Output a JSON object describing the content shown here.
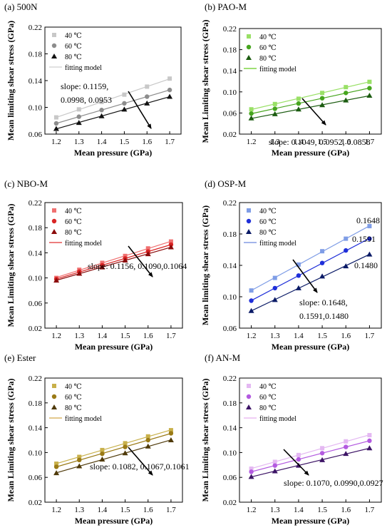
{
  "chart_data": [
    {
      "type": "scatter",
      "panel": "(a) 500N",
      "xlabel": "Mean pressure (GPa)",
      "ylabel": "Mean limiting shear stress (GPa)",
      "xlim": [
        1.15,
        1.75
      ],
      "ylim": [
        0.06,
        0.22
      ],
      "xticks": [
        "1.2",
        "1.3",
        "1.4",
        "1.5",
        "1.6",
        "1.7"
      ],
      "yticks": [
        "0.06",
        "0.10",
        "0.14",
        "0.18",
        "0.22"
      ],
      "x": [
        1.2,
        1.3,
        1.4,
        1.5,
        1.6,
        1.7
      ],
      "series": [
        {
          "name": "40 ℃",
          "marker": "square",
          "color": "#c8c8c8",
          "values": [
            0.085,
            0.097,
            0.108,
            0.119,
            0.131,
            0.143
          ]
        },
        {
          "name": "60 ℃",
          "marker": "circle",
          "color": "#8c8c8c",
          "values": [
            0.076,
            0.086,
            0.096,
            0.106,
            0.116,
            0.126
          ]
        },
        {
          "name": "80 ℃",
          "marker": "triangle",
          "color": "#111111",
          "values": [
            0.068,
            0.077,
            0.087,
            0.097,
            0.106,
            0.116
          ]
        }
      ],
      "fit_label": "fitting model",
      "fit_color": "#cfcfcf",
      "annotation": [
        "slope: 0.1159,",
        "0.0998, 0.0953"
      ],
      "legend": "top-left"
    },
    {
      "type": "scatter",
      "panel": "(b) PAO-M",
      "xlabel": "Mean pressure (GPa)",
      "ylabel": "Mean Limiting shear stress (GPa)",
      "xlim": [
        1.15,
        1.75
      ],
      "ylim": [
        0.02,
        0.22
      ],
      "xticks": [
        "1.2",
        "1.3",
        "1.4",
        "1.5",
        "1.6",
        "1.7"
      ],
      "yticks": [
        "0.02",
        "0.06",
        "0.10",
        "0.14",
        "0.18",
        "0.22"
      ],
      "x": [
        1.2,
        1.3,
        1.4,
        1.5,
        1.6,
        1.7
      ],
      "series": [
        {
          "name": "40 ℃",
          "marker": "square",
          "color": "#99e066",
          "values": [
            0.067,
            0.077,
            0.087,
            0.098,
            0.109,
            0.119
          ]
        },
        {
          "name": "60 ℃",
          "marker": "circle",
          "color": "#46a51e",
          "values": [
            0.059,
            0.068,
            0.078,
            0.088,
            0.098,
            0.107
          ]
        },
        {
          "name": "80 ℃",
          "marker": "triangle",
          "color": "#1c5c11",
          "values": [
            0.05,
            0.058,
            0.067,
            0.075,
            0.084,
            0.093
          ]
        }
      ],
      "fit_label": "fitting model",
      "fit_color": "#66cc22",
      "annotation": [
        "slope: 0.1049, 0.0952, 0.0858"
      ],
      "legend": "top-left"
    },
    {
      "type": "scatter",
      "panel": "(c) NBO-M",
      "xlabel": "Mean pressure (GPa)",
      "ylabel": "Mean Limiting shear stress (GPa)",
      "xlim": [
        1.15,
        1.75
      ],
      "ylim": [
        0.02,
        0.22
      ],
      "xticks": [
        "1.2",
        "1.3",
        "1.4",
        "1.5",
        "1.6",
        "1.7"
      ],
      "yticks": [
        "0.02",
        "0.06",
        "0.10",
        "0.14",
        "0.18",
        "0.22"
      ],
      "x": [
        1.2,
        1.3,
        1.4,
        1.5,
        1.6,
        1.7
      ],
      "series": [
        {
          "name": "40 ℃",
          "marker": "square",
          "color": "#f07070",
          "values": [
            0.1,
            0.113,
            0.124,
            0.135,
            0.147,
            0.158
          ]
        },
        {
          "name": "60 ℃",
          "marker": "circle",
          "color": "#d92525",
          "values": [
            0.098,
            0.11,
            0.12,
            0.131,
            0.142,
            0.153
          ]
        },
        {
          "name": "80 ℃",
          "marker": "triangle",
          "color": "#8a0a0a",
          "values": [
            0.096,
            0.107,
            0.117,
            0.128,
            0.138,
            0.149
          ]
        }
      ],
      "fit_label": "fitting model",
      "fit_color": "#e03030",
      "annotation": [
        "slope: 0.1156, 0.1090,0.1064"
      ],
      "legend": "top-left"
    },
    {
      "type": "scatter",
      "panel": "(d) OSP-M",
      "xlabel": "Mean pressure (GPa)",
      "ylabel": "Mean limiting shear stress (GPa)",
      "xlim": [
        1.15,
        1.75
      ],
      "ylim": [
        0.06,
        0.22
      ],
      "xticks": [
        "1.2",
        "1.3",
        "1.4",
        "1.5",
        "1.6",
        "1.7"
      ],
      "yticks": [
        "0.06",
        "0.10",
        "0.14",
        "0.18",
        "0.22"
      ],
      "x": [
        1.2,
        1.3,
        1.4,
        1.5,
        1.6,
        1.7
      ],
      "series": [
        {
          "name": "40 ℃",
          "marker": "square",
          "color": "#7f9de6",
          "values": [
            0.108,
            0.124,
            0.141,
            0.158,
            0.174,
            0.19
          ]
        },
        {
          "name": "60 ℃",
          "marker": "circle",
          "color": "#1f2fd9",
          "values": [
            0.095,
            0.111,
            0.127,
            0.143,
            0.159,
            0.174
          ]
        },
        {
          "name": "80 ℃",
          "marker": "triangle",
          "color": "#0a1a66",
          "values": [
            0.082,
            0.096,
            0.111,
            0.126,
            0.139,
            0.154
          ]
        }
      ],
      "fit_label": "fitting model",
      "fit_color": "#6a86dd",
      "annotation": [
        "slope: 0.1648,",
        "0.1591,0.1480"
      ],
      "end_labels": [
        "0.1648",
        "0.1591",
        "0.1480"
      ],
      "legend": "top-left"
    },
    {
      "type": "scatter",
      "panel": "(e) Ester",
      "xlabel": "Mean pressure (GPa)",
      "ylabel": "Mean Limiting shear stress (GPa)",
      "xlim": [
        1.15,
        1.75
      ],
      "ylim": [
        0.02,
        0.22
      ],
      "xticks": [
        "1.2",
        "1.3",
        "1.4",
        "1.5",
        "1.6",
        "1.7"
      ],
      "yticks": [
        "0.02",
        "0.06",
        "0.10",
        "0.14",
        "0.18",
        "0.22"
      ],
      "x": [
        1.2,
        1.3,
        1.4,
        1.5,
        1.6,
        1.7
      ],
      "series": [
        {
          "name": "40 ℃",
          "marker": "square",
          "color": "#c8b04a",
          "values": [
            0.082,
            0.093,
            0.104,
            0.115,
            0.126,
            0.136
          ]
        },
        {
          "name": "60 ℃",
          "marker": "circle",
          "color": "#9a7a16",
          "values": [
            0.077,
            0.088,
            0.098,
            0.109,
            0.12,
            0.131
          ]
        },
        {
          "name": "80 ℃",
          "marker": "triangle",
          "color": "#4f3a0a",
          "values": [
            0.067,
            0.078,
            0.089,
            0.099,
            0.11,
            0.12
          ]
        }
      ],
      "fit_label": "fitting model",
      "fit_color": "#d2a64a",
      "annotation": [
        "slope: 0.1082, 0.1067,0.1061"
      ],
      "legend": "top-left"
    },
    {
      "type": "scatter",
      "panel": "(f) AN-M",
      "xlabel": "Mean pressure (GPa)",
      "ylabel": "Mean Limiting shear stress (GPa)",
      "xlim": [
        1.15,
        1.75
      ],
      "ylim": [
        0.02,
        0.22
      ],
      "xticks": [
        "1.2",
        "1.3",
        "1.4",
        "1.5",
        "1.6",
        "1.7"
      ],
      "yticks": [
        "0.02",
        "0.06",
        "0.10",
        "0.14",
        "0.18",
        "0.22"
      ],
      "x": [
        1.2,
        1.3,
        1.4,
        1.5,
        1.6,
        1.7
      ],
      "series": [
        {
          "name": "40 ℃",
          "marker": "square",
          "color": "#e4b8f2",
          "values": [
            0.074,
            0.085,
            0.096,
            0.107,
            0.118,
            0.128
          ]
        },
        {
          "name": "60 ℃",
          "marker": "circle",
          "color": "#b35ae0",
          "values": [
            0.069,
            0.079,
            0.089,
            0.099,
            0.109,
            0.119
          ]
        },
        {
          "name": "80 ℃",
          "marker": "triangle",
          "color": "#3d1466",
          "values": [
            0.061,
            0.07,
            0.079,
            0.088,
            0.098,
            0.107
          ]
        }
      ],
      "fit_label": "fitting model",
      "fit_color": "#e7b0ef",
      "annotation": [
        "slope: 0.1070, 0.0990,0.0927"
      ],
      "legend": "top-left"
    }
  ]
}
